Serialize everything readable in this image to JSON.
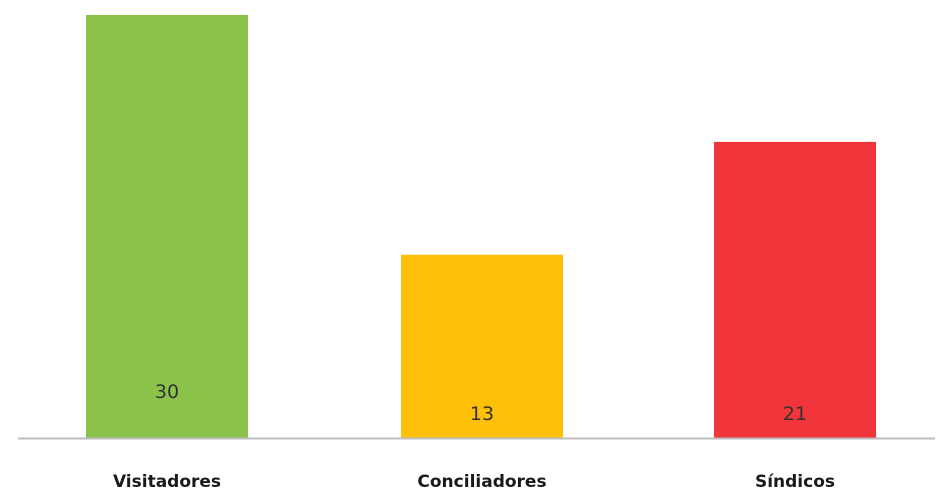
{
  "chart_data": {
    "type": "bar",
    "categories": [
      "Visitadores",
      "Conciliadores",
      "Síndicos"
    ],
    "values": [
      30,
      13,
      21
    ],
    "data_labels": [
      "30",
      "13",
      "21"
    ],
    "colors": [
      "#8bc34a",
      "#ffc107",
      "#f0363a"
    ],
    "axis_color": "#bdbdbd",
    "ylim": [
      0,
      30
    ],
    "grid": false,
    "legend": "none"
  }
}
